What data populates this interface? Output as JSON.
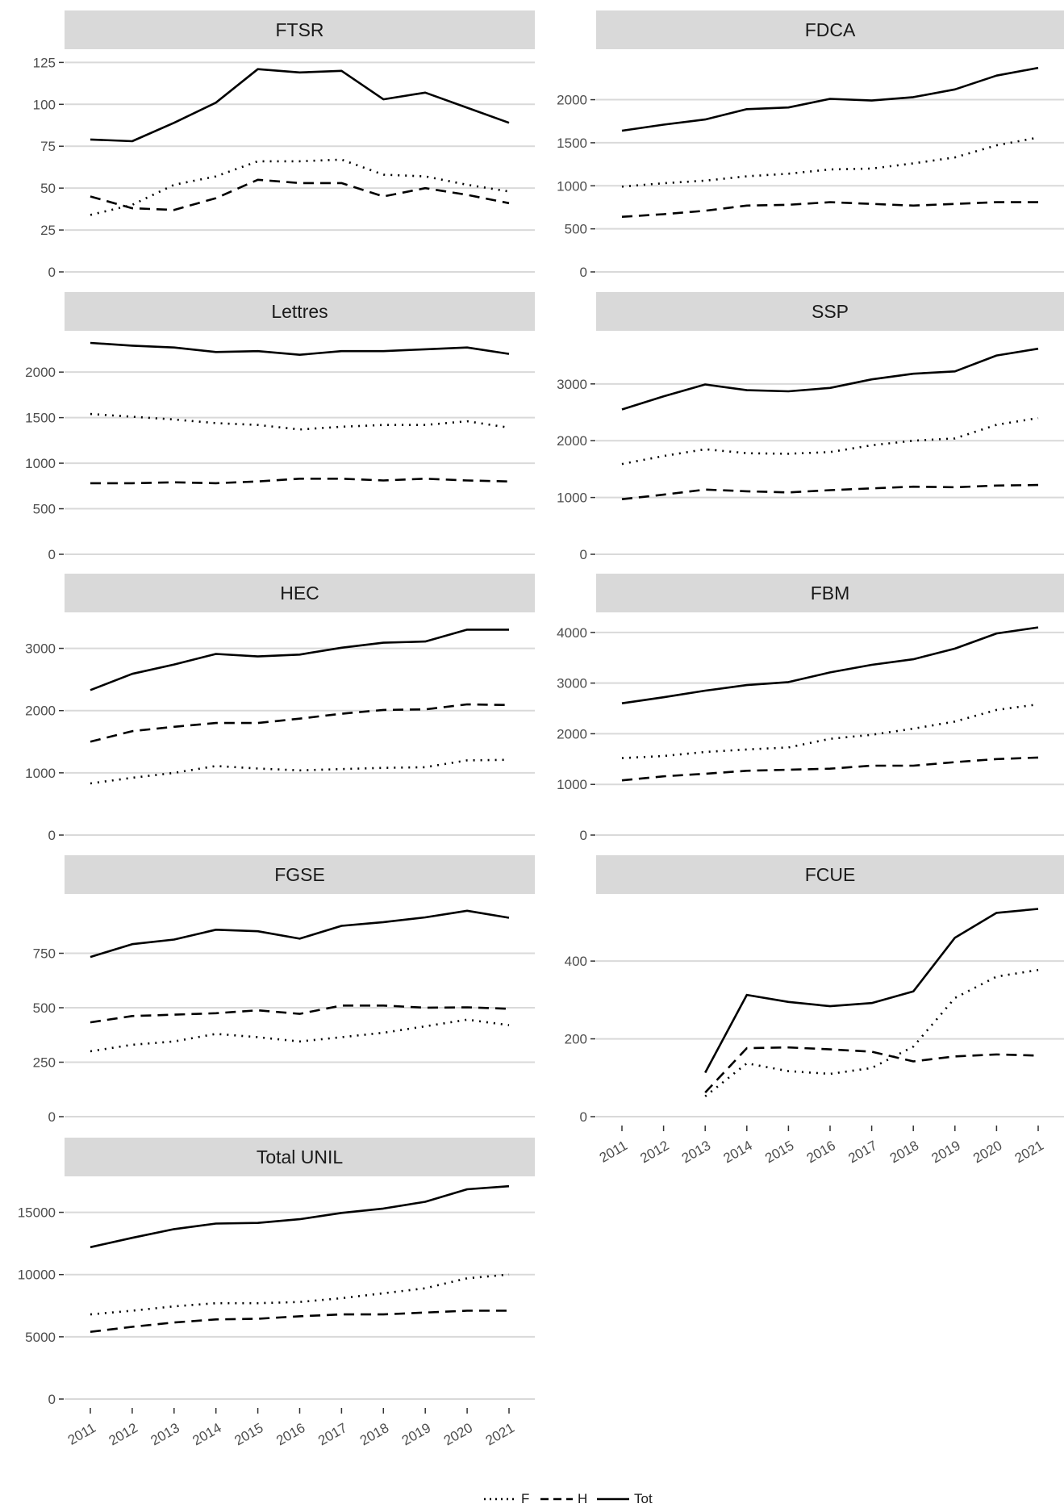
{
  "legend": [
    {
      "key": "F",
      "label": "F",
      "dash": "dotted"
    },
    {
      "key": "H",
      "label": "H",
      "dash": "dashed"
    },
    {
      "key": "Tot",
      "label": "Tot",
      "dash": "solid"
    }
  ],
  "colors": {
    "line": "#000000",
    "strip": "#d9d9d9",
    "grid": "#d9d9d9",
    "tick_text": "#4d4d4d"
  },
  "chart_data": [
    {
      "type": "line",
      "title": "FTSR",
      "x": [
        2011,
        2012,
        2013,
        2014,
        2015,
        2016,
        2017,
        2018,
        2019,
        2020,
        2021
      ],
      "yticks": [
        0,
        25,
        50,
        75,
        100,
        125
      ],
      "ylim": [
        0,
        130
      ],
      "series": [
        {
          "name": "F",
          "values": [
            34,
            40,
            52,
            57,
            66,
            66,
            67,
            58,
            57,
            52,
            48
          ]
        },
        {
          "name": "H",
          "values": [
            45,
            38,
            37,
            44,
            55,
            53,
            53,
            45,
            50,
            46,
            41
          ]
        },
        {
          "name": "Tot",
          "values": [
            79,
            78,
            89,
            101,
            121,
            119,
            120,
            103,
            107,
            98,
            89
          ]
        }
      ]
    },
    {
      "type": "line",
      "title": "FDCA",
      "x": [
        2011,
        2012,
        2013,
        2014,
        2015,
        2016,
        2017,
        2018,
        2019,
        2020,
        2021
      ],
      "yticks": [
        0,
        500,
        1000,
        1500,
        2000
      ],
      "ylim": [
        0,
        2530
      ],
      "series": [
        {
          "name": "F",
          "values": [
            990,
            1030,
            1060,
            1110,
            1140,
            1190,
            1200,
            1260,
            1330,
            1470,
            1560
          ]
        },
        {
          "name": "H",
          "values": [
            640,
            670,
            710,
            770,
            780,
            810,
            790,
            770,
            790,
            810,
            810
          ]
        },
        {
          "name": "Tot",
          "values": [
            1640,
            1710,
            1770,
            1890,
            1910,
            2010,
            1990,
            2030,
            2120,
            2280,
            2370
          ]
        }
      ]
    },
    {
      "type": "line",
      "title": "Lettres",
      "x": [
        2011,
        2012,
        2013,
        2014,
        2015,
        2016,
        2017,
        2018,
        2019,
        2020,
        2021
      ],
      "yticks": [
        0,
        500,
        1000,
        1500,
        2000
      ],
      "ylim": [
        0,
        2400
      ],
      "series": [
        {
          "name": "F",
          "values": [
            1540,
            1510,
            1480,
            1440,
            1420,
            1370,
            1400,
            1420,
            1420,
            1460,
            1390
          ]
        },
        {
          "name": "H",
          "values": [
            780,
            780,
            790,
            780,
            800,
            830,
            830,
            810,
            830,
            810,
            800
          ]
        },
        {
          "name": "Tot",
          "values": [
            2320,
            2290,
            2270,
            2220,
            2230,
            2190,
            2230,
            2230,
            2250,
            2270,
            2200
          ]
        }
      ]
    },
    {
      "type": "line",
      "title": "SSP",
      "x": [
        2011,
        2012,
        2013,
        2014,
        2015,
        2016,
        2017,
        2018,
        2019,
        2020,
        2021
      ],
      "yticks": [
        0,
        1000,
        2000,
        3000
      ],
      "ylim": [
        0,
        3850
      ],
      "series": [
        {
          "name": "F",
          "values": [
            1590,
            1730,
            1850,
            1780,
            1770,
            1800,
            1920,
            2000,
            2040,
            2280,
            2400
          ]
        },
        {
          "name": "H",
          "values": [
            970,
            1050,
            1140,
            1110,
            1090,
            1130,
            1160,
            1190,
            1180,
            1210,
            1220
          ]
        },
        {
          "name": "Tot",
          "values": [
            2550,
            2780,
            2990,
            2890,
            2870,
            2930,
            3080,
            3180,
            3220,
            3500,
            3620
          ]
        }
      ]
    },
    {
      "type": "line",
      "title": "HEC",
      "x": [
        2011,
        2012,
        2013,
        2014,
        2015,
        2016,
        2017,
        2018,
        2019,
        2020,
        2021
      ],
      "yticks": [
        0,
        1000,
        2000,
        3000
      ],
      "ylim": [
        0,
        3500
      ],
      "series": [
        {
          "name": "F",
          "values": [
            830,
            920,
            1000,
            1110,
            1070,
            1040,
            1060,
            1080,
            1090,
            1200,
            1210
          ]
        },
        {
          "name": "H",
          "values": [
            1500,
            1670,
            1740,
            1800,
            1800,
            1870,
            1950,
            2010,
            2020,
            2100,
            2090
          ]
        },
        {
          "name": "Tot",
          "values": [
            2330,
            2590,
            2740,
            2910,
            2870,
            2900,
            3010,
            3090,
            3110,
            3300,
            3300
          ]
        }
      ]
    },
    {
      "type": "line",
      "title": "FBM",
      "x": [
        2011,
        2012,
        2013,
        2014,
        2015,
        2016,
        2017,
        2018,
        2019,
        2020,
        2021
      ],
      "yticks": [
        0,
        1000,
        2000,
        3000,
        4000
      ],
      "ylim": [
        0,
        4300
      ],
      "series": [
        {
          "name": "F",
          "values": [
            1520,
            1560,
            1640,
            1690,
            1730,
            1900,
            1980,
            2100,
            2240,
            2470,
            2580
          ]
        },
        {
          "name": "H",
          "values": [
            1080,
            1160,
            1210,
            1270,
            1290,
            1310,
            1370,
            1370,
            1440,
            1500,
            1530
          ]
        },
        {
          "name": "Tot",
          "values": [
            2600,
            2720,
            2850,
            2960,
            3020,
            3210,
            3360,
            3470,
            3680,
            3980,
            4100
          ]
        }
      ]
    },
    {
      "type": "line",
      "title": "FGSE",
      "x": [
        2011,
        2012,
        2013,
        2014,
        2015,
        2016,
        2017,
        2018,
        2019,
        2020,
        2021
      ],
      "yticks": [
        0,
        250,
        500,
        750
      ],
      "ylim": [
        0,
        1000
      ],
      "series": [
        {
          "name": "F",
          "values": [
            300,
            330,
            345,
            380,
            365,
            345,
            365,
            385,
            415,
            445,
            420
          ]
        },
        {
          "name": "H",
          "values": [
            433,
            462,
            468,
            475,
            488,
            472,
            510,
            510,
            500,
            502,
            495
          ]
        },
        {
          "name": "Tot",
          "values": [
            733,
            792,
            813,
            858,
            851,
            817,
            876,
            893,
            915,
            945,
            913
          ]
        }
      ]
    },
    {
      "type": "line",
      "title": "FCUE",
      "x": [
        2011,
        2012,
        2013,
        2014,
        2015,
        2016,
        2017,
        2018,
        2019,
        2020,
        2021
      ],
      "yticks": [
        0,
        200,
        400
      ],
      "ylim": [
        0,
        560
      ],
      "series": [
        {
          "name": "F",
          "values": [
            null,
            null,
            52,
            137,
            117,
            110,
            125,
            180,
            305,
            360,
            377
          ]
        },
        {
          "name": "H",
          "values": [
            null,
            null,
            62,
            176,
            178,
            173,
            167,
            142,
            155,
            160,
            157
          ]
        },
        {
          "name": "Tot",
          "values": [
            null,
            null,
            113,
            313,
            295,
            284,
            292,
            322,
            460,
            524,
            534
          ]
        }
      ]
    },
    {
      "type": "line",
      "title": "Total UNIL",
      "x": [
        2011,
        2012,
        2013,
        2014,
        2015,
        2016,
        2017,
        2018,
        2019,
        2020,
        2021
      ],
      "yticks": [
        0,
        5000,
        10000,
        15000
      ],
      "ylim": [
        0,
        17500
      ],
      "series": [
        {
          "name": "F",
          "values": [
            6800,
            7100,
            7450,
            7700,
            7700,
            7800,
            8100,
            8500,
            8900,
            9700,
            10000
          ]
        },
        {
          "name": "H",
          "values": [
            5400,
            5800,
            6150,
            6400,
            6450,
            6650,
            6800,
            6800,
            6950,
            7100,
            7100
          ]
        },
        {
          "name": "Tot",
          "values": [
            12200,
            12950,
            13650,
            14100,
            14150,
            14450,
            14950,
            15300,
            15850,
            16850,
            17100
          ]
        }
      ]
    }
  ]
}
